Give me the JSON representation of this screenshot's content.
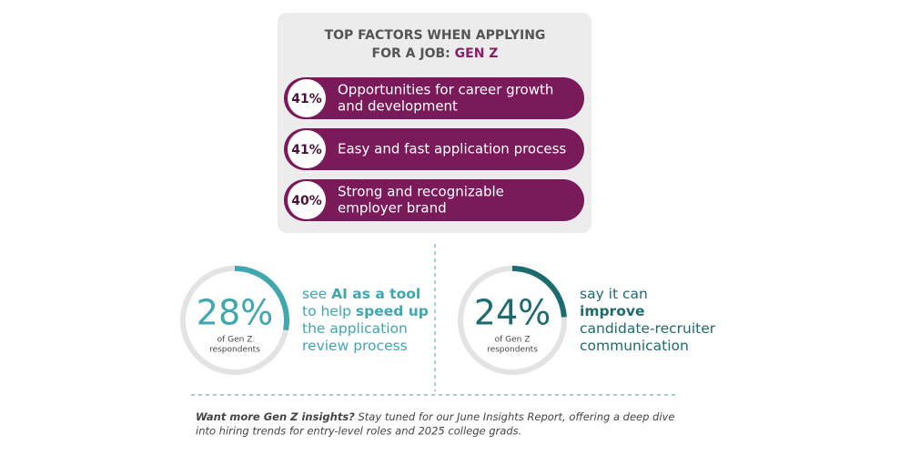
{
  "factors": {
    "title_lines": [
      "TOP FACTORS WHEN APPLYING",
      "FOR A JOB: "
    ],
    "title_highlight": "GEN Z",
    "items": [
      {
        "value": 41,
        "label": "41%",
        "text_lines": [
          "Opportunities for career growth",
          "and development"
        ]
      },
      {
        "value": 41,
        "label": "41%",
        "text_lines": [
          "Easy and fast application process"
        ]
      },
      {
        "value": 40,
        "label": "40%",
        "text_lines": [
          "Strong and recognizable",
          "employer brand"
        ]
      }
    ]
  },
  "stats": [
    {
      "value": 28,
      "label": "28%",
      "caption_lines": [
        "of Gen Z",
        "respondents"
      ],
      "color": "#3ea7b0",
      "lines": [
        [
          {
            "t": "see "
          },
          {
            "t": "AI as a tool",
            "b": true
          }
        ],
        [
          {
            "t": "to help "
          },
          {
            "t": "speed up",
            "b": true
          }
        ],
        [
          {
            "t": "the application"
          }
        ],
        [
          {
            "t": "review process"
          }
        ]
      ]
    },
    {
      "value": 24,
      "label": "24%",
      "caption_lines": [
        "of Gen Z",
        "respondents"
      ],
      "color": "#1d6b6e",
      "lines": [
        [
          {
            "t": "say it can"
          }
        ],
        [
          {
            "t": "improve",
            "b": true
          }
        ],
        [
          {
            "t": "candidate-recruiter"
          }
        ],
        [
          {
            "t": "communication"
          }
        ]
      ]
    }
  ],
  "footer": {
    "lead": "Want more Gen Z insights?",
    "lines": [
      " Stay tuned for our June Insights Report, offering a deep dive",
      "into hiring trends for entry-level roles and 2025 college grads."
    ]
  }
}
